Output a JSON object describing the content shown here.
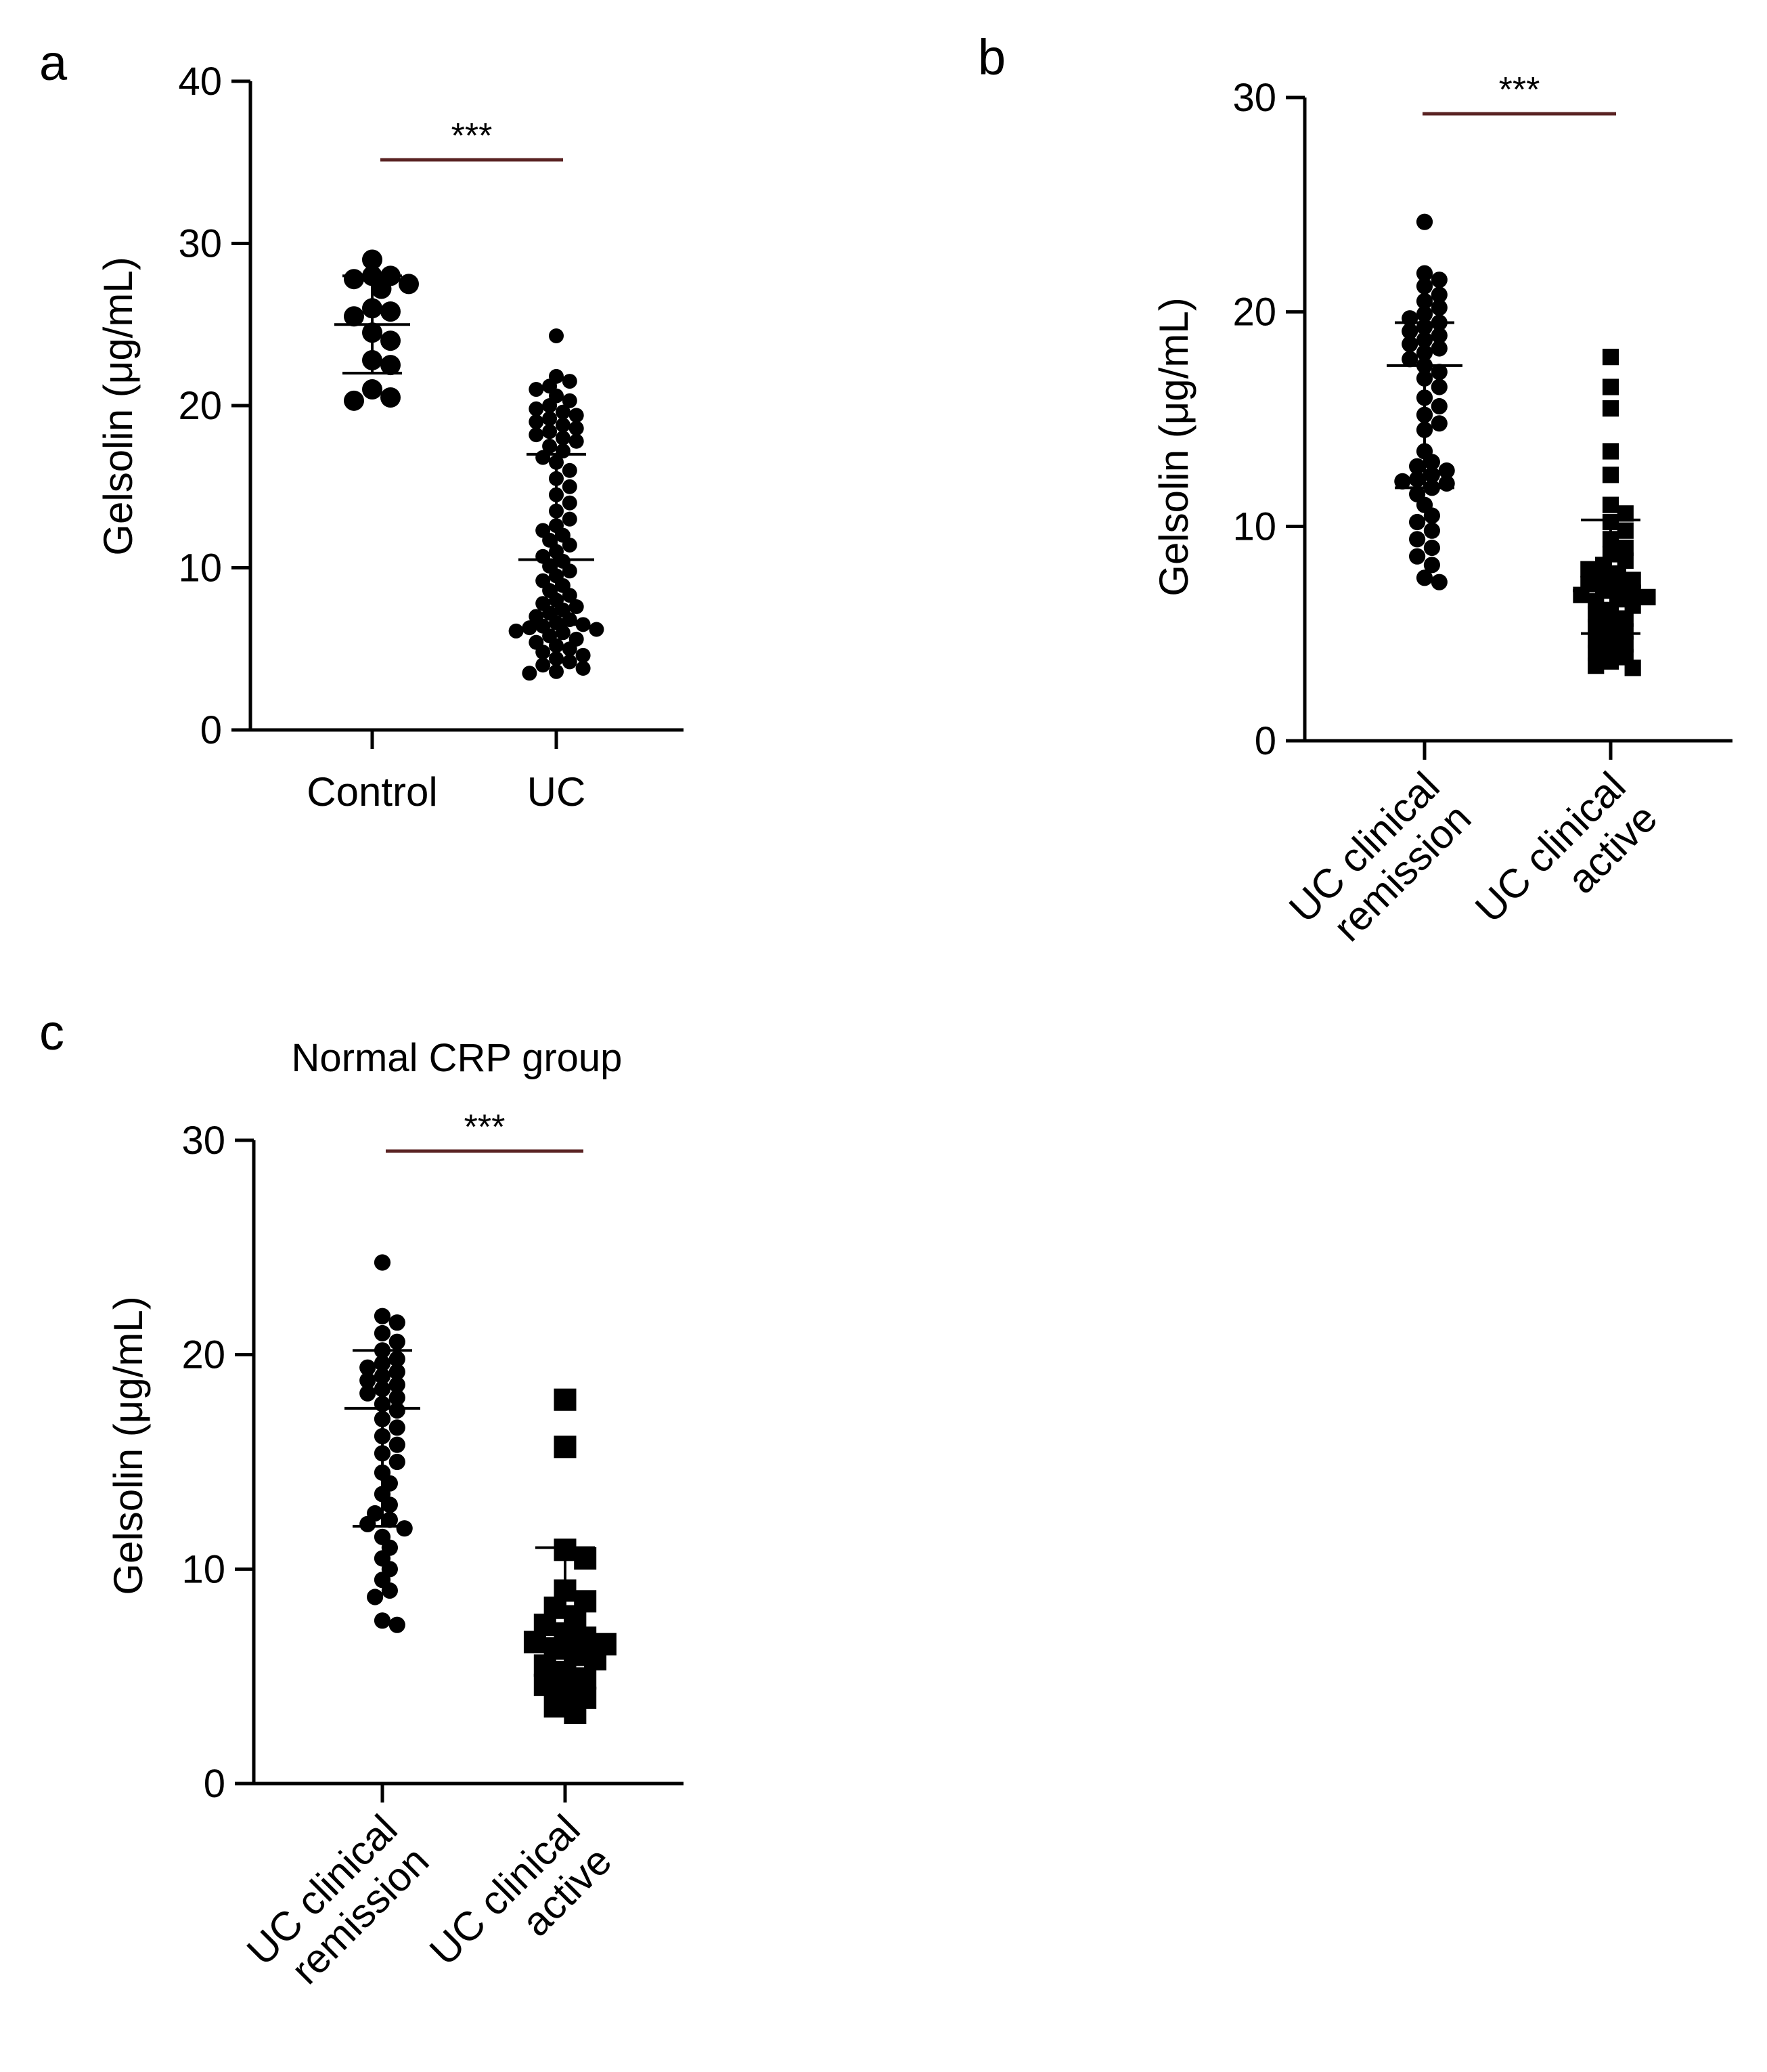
{
  "figure": {
    "background": "#ffffff",
    "ink": "#000000",
    "bracket_color": "#5a2323"
  },
  "chart_data": [
    {
      "panel": "a",
      "type": "scatter",
      "title": "",
      "ylabel": "Gelsolin (μg/mL)",
      "xlabel": "",
      "ylim": [
        0,
        40
      ],
      "yticks": [
        0,
        10,
        20,
        30,
        40
      ],
      "categories": [
        "Control",
        "UC"
      ],
      "significance": "***",
      "series": [
        {
          "name": "Control",
          "marker": "circle",
          "summary": {
            "center": 25.0,
            "low": 22.0,
            "high": 28.0
          },
          "values": [
            29.0,
            28.0,
            28.0,
            27.8,
            27.5,
            27.2,
            26.0,
            25.8,
            25.5,
            24.5,
            24.0,
            22.8,
            22.5,
            21.0,
            20.5,
            20.3
          ]
        },
        {
          "name": "UC",
          "marker": "circle",
          "summary": {
            "center": 10.5,
            "low": 6.5,
            "high": 17.0
          },
          "values": [
            24.3,
            21.8,
            21.5,
            21.2,
            21.0,
            20.6,
            20.3,
            20.0,
            19.8,
            19.6,
            19.4,
            19.2,
            19.0,
            18.8,
            18.6,
            18.4,
            18.2,
            18.0,
            17.8,
            17.5,
            17.2,
            16.8,
            16.5,
            16.0,
            15.5,
            15.0,
            14.5,
            14.0,
            13.5,
            13.0,
            12.6,
            12.3,
            12.0,
            11.7,
            11.4,
            11.0,
            10.7,
            10.4,
            10.1,
            9.8,
            9.5,
            9.2,
            8.9,
            8.6,
            8.3,
            8.0,
            7.8,
            7.6,
            7.4,
            7.2,
            7.0,
            6.8,
            6.6,
            6.5,
            6.4,
            6.3,
            6.2,
            6.1,
            6.0,
            5.8,
            5.6,
            5.4,
            5.2,
            5.0,
            4.8,
            4.6,
            4.4,
            4.2,
            4.0,
            3.8,
            3.6,
            3.5
          ]
        }
      ]
    },
    {
      "panel": "b",
      "type": "scatter",
      "title": "",
      "ylabel": "Gelsolin (μg/mL)",
      "xlabel": "",
      "ylim": [
        0,
        30
      ],
      "yticks": [
        0,
        10,
        20,
        30
      ],
      "categories": [
        [
          "UC clinical",
          "remission"
        ],
        [
          "UC clinical",
          "active"
        ]
      ],
      "significance": "***",
      "series": [
        {
          "name": "UC clinical remission",
          "marker": "circle",
          "summary": {
            "center": 17.5,
            "low": 11.8,
            "high": 19.5
          },
          "values": [
            24.2,
            21.8,
            21.5,
            21.2,
            20.8,
            20.5,
            20.2,
            19.9,
            19.7,
            19.5,
            19.3,
            19.1,
            18.9,
            18.7,
            18.5,
            18.3,
            18.1,
            17.8,
            17.5,
            17.2,
            16.9,
            16.5,
            16.0,
            15.6,
            15.2,
            14.8,
            14.5,
            13.5,
            13.0,
            12.8,
            12.6,
            12.4,
            12.2,
            12.1,
            12.0,
            11.8,
            11.5,
            11.0,
            10.5,
            10.2,
            9.8,
            9.4,
            9.0,
            8.6,
            8.2,
            7.6,
            7.4
          ]
        },
        {
          "name": "UC clinical active",
          "marker": "square",
          "summary": {
            "center": 7.0,
            "low": 5.0,
            "high": 10.3
          },
          "values": [
            17.9,
            16.5,
            15.5,
            13.5,
            12.4,
            11.0,
            10.6,
            10.2,
            9.8,
            9.4,
            9.0,
            8.7,
            8.4,
            8.2,
            8.0,
            7.8,
            7.6,
            7.5,
            7.3,
            7.2,
            7.0,
            6.9,
            6.8,
            6.7,
            6.6,
            6.5,
            6.3,
            6.1,
            5.9,
            5.7,
            5.5,
            5.3,
            5.1,
            4.9,
            4.7,
            4.5,
            4.3,
            4.1,
            3.9,
            3.7,
            3.5,
            3.4
          ]
        }
      ]
    },
    {
      "panel": "c",
      "type": "scatter",
      "title": "Normal CRP group",
      "ylabel": "Gelsolin (μg/mL)",
      "xlabel": "",
      "ylim": [
        0,
        30
      ],
      "yticks": [
        0,
        10,
        20,
        30
      ],
      "categories": [
        [
          "UC clinical",
          "remission"
        ],
        [
          "UC clinical",
          "active"
        ]
      ],
      "significance": "***",
      "series": [
        {
          "name": "UC clinical remission",
          "marker": "circle",
          "summary": {
            "center": 17.5,
            "low": 12.0,
            "high": 20.2
          },
          "values": [
            24.3,
            21.8,
            21.5,
            21.0,
            20.6,
            20.2,
            19.8,
            19.6,
            19.4,
            19.2,
            19.0,
            18.8,
            18.6,
            18.4,
            18.2,
            18.0,
            17.7,
            17.4,
            17.0,
            16.6,
            16.2,
            15.8,
            15.4,
            15.0,
            14.5,
            14.0,
            13.5,
            13.0,
            12.6,
            12.3,
            12.1,
            11.9,
            11.5,
            11.0,
            10.5,
            10.0,
            9.5,
            9.0,
            8.7,
            7.6,
            7.4
          ]
        },
        {
          "name": "UC clinical active",
          "marker": "square",
          "summary": {
            "center": 6.5,
            "low": 5.0,
            "high": 11.0
          },
          "values": [
            17.9,
            15.7,
            10.9,
            10.5,
            9.0,
            8.5,
            8.2,
            7.8,
            7.4,
            7.0,
            6.8,
            6.6,
            6.5,
            6.3,
            6.0,
            5.8,
            5.5,
            5.2,
            4.9,
            4.6,
            4.3,
            4.0,
            3.6,
            3.3
          ]
        }
      ]
    }
  ]
}
